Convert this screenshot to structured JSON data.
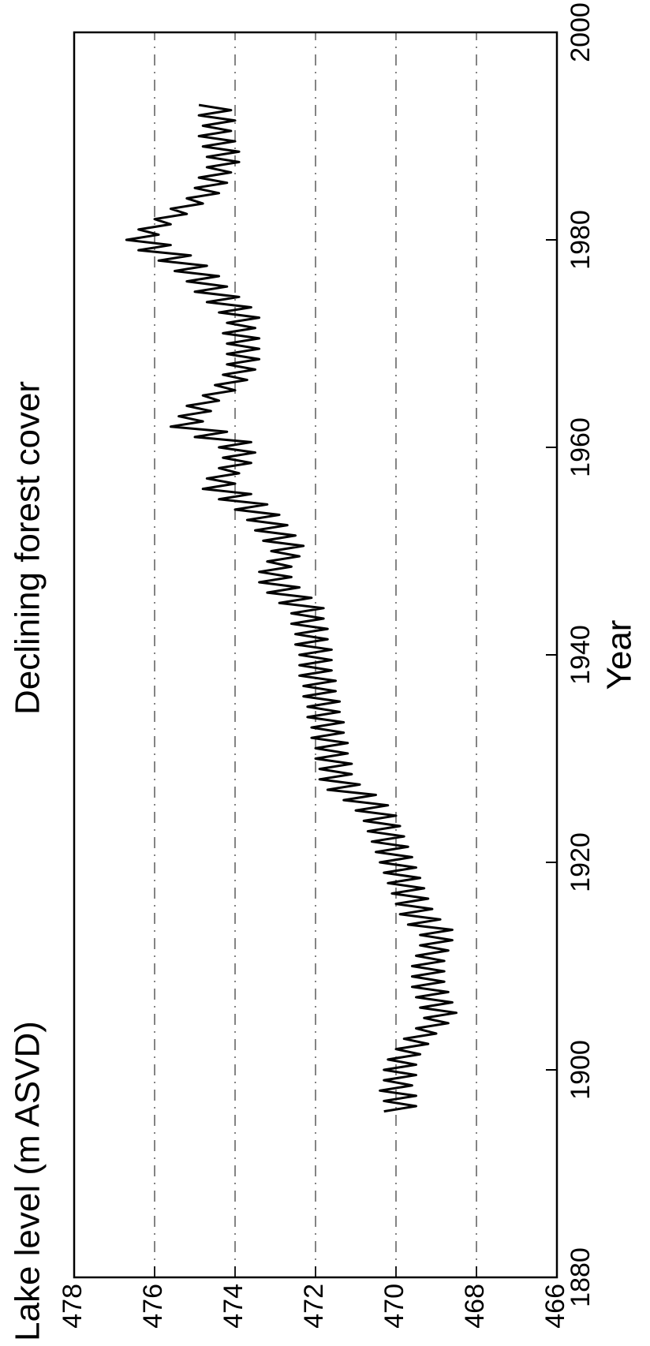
{
  "chart_data": {
    "type": "line",
    "title": "Declining forest cover",
    "y_label": "Lake level (m ASVD)",
    "x_label": "Year",
    "color": "#000000",
    "grid": true,
    "xlim": [
      1880,
      2000
    ],
    "xticks": [
      1880,
      1900,
      1920,
      1940,
      1960,
      1980,
      2000
    ],
    "ylim": [
      466,
      478
    ],
    "yticks": [
      466,
      468,
      470,
      472,
      474,
      476,
      478
    ],
    "x": [
      1896,
      1896.5,
      1897,
      1897.5,
      1898,
      1898.5,
      1899,
      1899.5,
      1900,
      1900.5,
      1901,
      1901.5,
      1902,
      1902.5,
      1903,
      1903.5,
      1904,
      1904.5,
      1905,
      1905.5,
      1906,
      1906.5,
      1907,
      1907.5,
      1908,
      1908.5,
      1909,
      1909.5,
      1910,
      1910.5,
      1911,
      1911.5,
      1912,
      1912.5,
      1913,
      1913.5,
      1914,
      1914.5,
      1915,
      1915.5,
      1916,
      1916.5,
      1917,
      1917.5,
      1918,
      1918.5,
      1919,
      1919.5,
      1920,
      1920.5,
      1921,
      1921.5,
      1922,
      1922.5,
      1923,
      1923.5,
      1924,
      1924.5,
      1925,
      1925.5,
      1926,
      1926.5,
      1927,
      1927.5,
      1928,
      1928.5,
      1929,
      1929.5,
      1930,
      1930.5,
      1931,
      1931.5,
      1932,
      1932.5,
      1933,
      1933.5,
      1934,
      1934.5,
      1935,
      1935.5,
      1936,
      1936.5,
      1937,
      1937.5,
      1938,
      1938.5,
      1939,
      1939.5,
      1940,
      1940.5,
      1941,
      1941.5,
      1942,
      1942.5,
      1943,
      1943.5,
      1944,
      1944.5,
      1945,
      1945.5,
      1946,
      1946.5,
      1947,
      1947.5,
      1948,
      1948.5,
      1949,
      1949.5,
      1950,
      1950.5,
      1951,
      1951.5,
      1952,
      1952.5,
      1953,
      1953.5,
      1954,
      1954.5,
      1955,
      1955.5,
      1956,
      1956.5,
      1957,
      1957.5,
      1958,
      1958.5,
      1959,
      1959.5,
      1960,
      1960.5,
      1961,
      1961.5,
      1962,
      1962.5,
      1963,
      1963.5,
      1964,
      1964.5,
      1965,
      1965.5,
      1966,
      1966.5,
      1967,
      1967.5,
      1968,
      1968.5,
      1969,
      1969.5,
      1970,
      1970.5,
      1971,
      1971.5,
      1972,
      1972.5,
      1973,
      1973.5,
      1974,
      1974.5,
      1975,
      1975.5,
      1976,
      1976.5,
      1977,
      1977.5,
      1978,
      1978.5,
      1979,
      1979.5,
      1980,
      1980.5,
      1981,
      1981.5,
      1982,
      1982.5,
      1983,
      1983.5,
      1984,
      1984.5,
      1985,
      1985.5,
      1986,
      1986.5,
      1987,
      1987.5,
      1988,
      1988.5,
      1989,
      1989.5,
      1990,
      1990.5,
      1991,
      1991.5,
      1992,
      1992.5,
      1993
    ],
    "values": [
      470.3,
      469.5,
      470.3,
      469.5,
      470.4,
      469.6,
      470.3,
      469.5,
      470.3,
      469.5,
      470.2,
      469.4,
      470.0,
      469.2,
      469.8,
      469.0,
      469.5,
      468.7,
      469.3,
      468.5,
      469.4,
      468.6,
      469.5,
      468.7,
      469.6,
      468.8,
      469.6,
      468.8,
      469.6,
      468.8,
      469.5,
      468.7,
      469.4,
      468.6,
      469.4,
      468.6,
      469.7,
      468.9,
      469.9,
      469.1,
      470.0,
      469.2,
      470.1,
      469.3,
      470.2,
      469.4,
      470.3,
      469.5,
      470.4,
      469.6,
      470.5,
      469.7,
      470.6,
      469.8,
      470.7,
      469.9,
      470.8,
      470.0,
      471.0,
      470.2,
      471.3,
      470.5,
      471.7,
      470.9,
      471.9,
      471.1,
      471.9,
      471.1,
      472.0,
      471.2,
      472.0,
      471.2,
      472.1,
      471.3,
      472.1,
      471.3,
      472.2,
      471.4,
      472.2,
      471.4,
      472.3,
      471.5,
      472.3,
      471.5,
      472.4,
      471.6,
      472.4,
      471.6,
      472.4,
      471.6,
      472.5,
      471.7,
      472.5,
      471.7,
      472.6,
      471.8,
      472.6,
      471.8,
      472.9,
      472.1,
      473.2,
      472.4,
      473.4,
      472.6,
      473.4,
      472.6,
      473.2,
      472.4,
      473.1,
      472.3,
      473.3,
      472.5,
      473.5,
      472.7,
      473.7,
      472.9,
      474.0,
      473.2,
      474.4,
      473.6,
      474.8,
      474.0,
      474.7,
      473.9,
      474.4,
      473.6,
      474.3,
      473.5,
      474.4,
      473.6,
      475.0,
      474.2,
      475.6,
      474.8,
      475.4,
      474.6,
      475.2,
      474.4,
      474.8,
      474.0,
      474.5,
      473.7,
      474.3,
      473.5,
      474.2,
      473.4,
      474.2,
      473.4,
      474.2,
      473.4,
      474.3,
      473.5,
      474.2,
      473.4,
      474.4,
      473.6,
      474.7,
      473.9,
      475.0,
      474.2,
      475.2,
      474.4,
      475.5,
      474.7,
      475.9,
      475.1,
      476.4,
      475.6,
      476.7,
      475.9,
      476.4,
      475.6,
      476.0,
      475.2,
      475.6,
      474.8,
      475.2,
      474.4,
      475.0,
      474.2,
      474.9,
      474.1,
      474.7,
      473.9,
      474.7,
      473.9,
      474.8,
      474.0,
      474.9,
      474.1,
      474.8,
      474.0,
      474.9,
      474.1,
      474.9
    ]
  }
}
